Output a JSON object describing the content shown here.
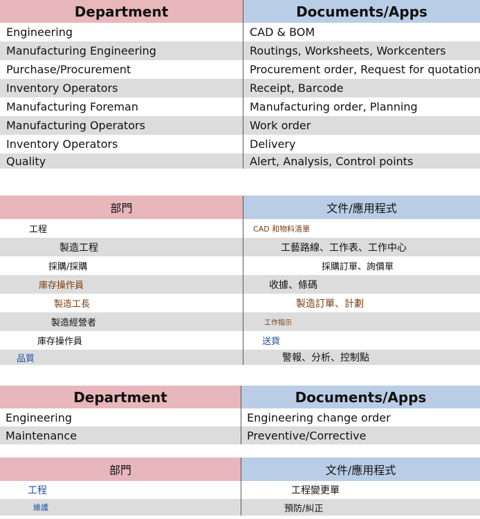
{
  "table1": {
    "headers": [
      "Department",
      "Documents/Apps"
    ],
    "rows": [
      [
        "Engineering",
        "CAD & BOM"
      ],
      [
        "Manufacturing Engineering",
        "Routings, Worksheets, Workcenters"
      ],
      [
        "Purchase/Procurement",
        "Procurement order, Request for quotation"
      ],
      [
        "Inventory Operators",
        "Receipt, Barcode"
      ],
      [
        "Manufacturing Foreman",
        "Manufacturing order, Planning"
      ],
      [
        "Manufacturing Operators",
        "Work order"
      ],
      [
        "Inventory Operators",
        "Delivery"
      ],
      [
        "Quality",
        "Alert, Analysis, Control points"
      ]
    ]
  },
  "table2": {
    "headers": [
      "部門",
      "文件/應用程式"
    ],
    "rows": [
      [
        "工程",
        "CAD 和物料清單"
      ],
      [
        "製造工程",
        "工藝路線、工作表、工作中心"
      ],
      [
        "採購/採購",
        "採購訂單、詢價單"
      ],
      [
        "庫存操作員",
        "收據、條碼"
      ],
      [
        "製造工長",
        "製造訂單、計劃"
      ],
      [
        "製造經營者",
        "工作指示"
      ],
      [
        "庫存操作員",
        "送貨"
      ],
      [
        "品質",
        "警報、分析、控制點"
      ]
    ]
  },
  "table3": {
    "headers": [
      "Department",
      "Documents/Apps"
    ],
    "rows": [
      [
        "Engineering",
        "Engineering change order"
      ],
      [
        "Maintenance",
        "Preventive/Corrective"
      ]
    ]
  },
  "table4": {
    "headers": [
      "部門",
      "文件/應用程式"
    ],
    "rows": [
      [
        "工程",
        "工程變更單"
      ],
      [
        "維護",
        "預防/糾正"
      ]
    ]
  }
}
